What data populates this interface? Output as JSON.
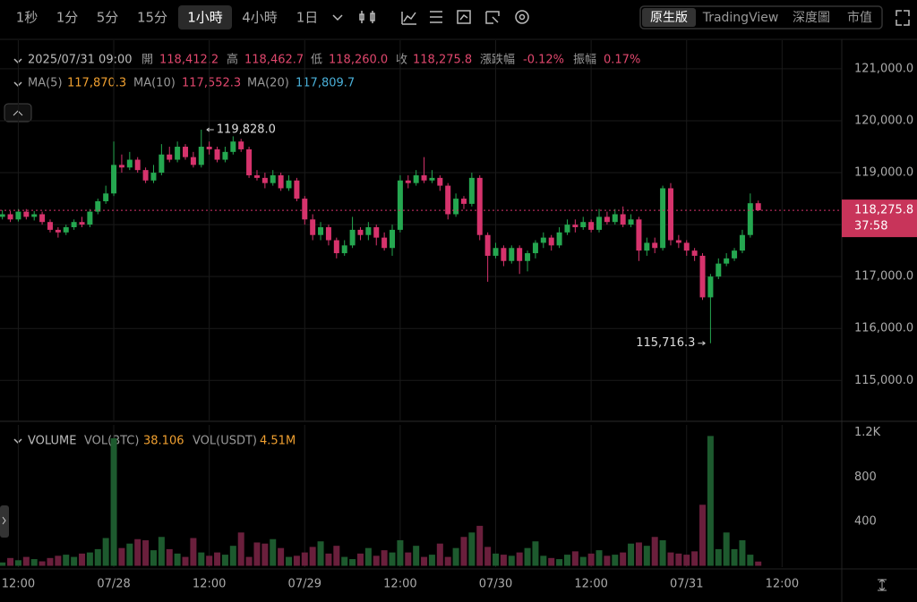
{
  "toolbar": {
    "intervals": [
      "1秒",
      "1分",
      "5分",
      "15分",
      "1小時",
      "4小時",
      "1日"
    ],
    "active_interval": 4,
    "views": [
      "原生版",
      "TradingView",
      "深度圖",
      "市值"
    ],
    "active_view": 0
  },
  "header": {
    "datetime": "2025/07/31 09:00",
    "fields": [
      {
        "label": "開",
        "value": "118,412.2"
      },
      {
        "label": "高",
        "value": "118,462.7"
      },
      {
        "label": "低",
        "value": "118,260.0"
      },
      {
        "label": "收",
        "value": "118,275.8"
      },
      {
        "label": "漲跌幅",
        "value": "-0.12%"
      },
      {
        "label": "振幅",
        "value": "0.17%"
      }
    ],
    "ma": [
      {
        "name": "MA(5)",
        "value": "117,870.3",
        "color": "#f0a030"
      },
      {
        "name": "MA(10)",
        "value": "117,552.3",
        "color": "#e0476d"
      },
      {
        "name": "MA(20)",
        "value": "117,809.7",
        "color": "#4ab0d9"
      }
    ]
  },
  "chart_data": {
    "type": "candlestick",
    "up_color": "#25a750",
    "down_color": "#d6336c",
    "vol_up_color": "#1d5a2e",
    "vol_down_color": "#6a1f3c",
    "grid": true,
    "ohlc": [
      [
        118150,
        118280,
        118100,
        118200
      ],
      [
        118200,
        118260,
        118050,
        118100
      ],
      [
        118100,
        118300,
        118060,
        118250
      ],
      [
        118250,
        118300,
        118100,
        118150
      ],
      [
        118150,
        118260,
        118080,
        118200
      ],
      [
        118200,
        118250,
        118000,
        118050
      ],
      [
        118050,
        118100,
        117850,
        117900
      ],
      [
        117900,
        117950,
        117750,
        117850
      ],
      [
        117850,
        118000,
        117800,
        117950
      ],
      [
        117950,
        118100,
        117900,
        118050
      ],
      [
        118050,
        118150,
        117950,
        118000
      ],
      [
        118000,
        118300,
        117950,
        118250
      ],
      [
        118250,
        118500,
        118200,
        118450
      ],
      [
        118450,
        118750,
        118400,
        118600
      ],
      [
        118600,
        119600,
        118550,
        119150
      ],
      [
        119150,
        119350,
        119000,
        119100
      ],
      [
        119100,
        119400,
        119050,
        119250
      ],
      [
        119250,
        119300,
        119000,
        119050
      ],
      [
        119050,
        119100,
        118800,
        118850
      ],
      [
        118850,
        119150,
        118800,
        119000
      ],
      [
        119000,
        119550,
        118950,
        119350
      ],
      [
        119350,
        119500,
        119200,
        119250
      ],
      [
        119250,
        119600,
        119200,
        119500
      ],
      [
        119500,
        119550,
        119250,
        119300
      ],
      [
        119300,
        119400,
        119100,
        119150
      ],
      [
        119150,
        119828.0,
        119100,
        119500
      ],
      [
        119500,
        119600,
        119350,
        119450
      ],
      [
        119450,
        119500,
        119200,
        119250
      ],
      [
        119250,
        119500,
        119200,
        119400
      ],
      [
        119400,
        119700,
        119350,
        119600
      ],
      [
        119600,
        119650,
        119400,
        119450
      ],
      [
        119450,
        119500,
        118900,
        118950
      ],
      [
        118950,
        119050,
        118850,
        118900
      ],
      [
        118900,
        119000,
        118700,
        118800
      ],
      [
        118800,
        119050,
        118750,
        118950
      ],
      [
        118950,
        119000,
        118650,
        118700
      ],
      [
        118700,
        118950,
        118650,
        118850
      ],
      [
        118850,
        118900,
        118450,
        118500
      ],
      [
        118500,
        118550,
        118000,
        118100
      ],
      [
        118100,
        118200,
        117700,
        117800
      ],
      [
        117800,
        118050,
        117700,
        117950
      ],
      [
        117950,
        118000,
        117600,
        117700
      ],
      [
        117700,
        117750,
        117350,
        117450
      ],
      [
        117450,
        117700,
        117400,
        117600
      ],
      [
        117600,
        118150,
        117550,
        117900
      ],
      [
        117900,
        117950,
        117700,
        117800
      ],
      [
        117800,
        118050,
        117700,
        117950
      ],
      [
        117950,
        118000,
        117600,
        117750
      ],
      [
        117750,
        117850,
        117500,
        117550
      ],
      [
        117550,
        118000,
        117400,
        117900
      ],
      [
        117900,
        118950,
        117850,
        118850
      ],
      [
        118850,
        118950,
        118700,
        118800
      ],
      [
        118800,
        119050,
        118750,
        118950
      ],
      [
        118950,
        119300,
        118800,
        118850
      ],
      [
        118850,
        119050,
        118800,
        118900
      ],
      [
        118900,
        118950,
        118650,
        118750
      ],
      [
        118750,
        118800,
        118100,
        118200
      ],
      [
        118200,
        118600,
        118150,
        118500
      ],
      [
        118500,
        118550,
        118300,
        118400
      ],
      [
        118400,
        119000,
        118350,
        118900
      ],
      [
        118900,
        118950,
        117700,
        117800
      ],
      [
        117800,
        117850,
        116900,
        117400
      ],
      [
        117400,
        117650,
        117350,
        117550
      ],
      [
        117550,
        117600,
        117200,
        117300
      ],
      [
        117300,
        117600,
        117250,
        117550
      ],
      [
        117550,
        117600,
        117050,
        117300
      ],
      [
        117300,
        117500,
        117100,
        117450
      ],
      [
        117450,
        117700,
        117350,
        117650
      ],
      [
        117650,
        117850,
        117550,
        117750
      ],
      [
        117750,
        117800,
        117500,
        117600
      ],
      [
        117600,
        117950,
        117550,
        117850
      ],
      [
        117850,
        118100,
        117800,
        118000
      ],
      [
        118000,
        118100,
        117850,
        117950
      ],
      [
        117950,
        118150,
        117900,
        118050
      ],
      [
        118050,
        118100,
        117850,
        117900
      ],
      [
        117900,
        118300,
        117850,
        118150
      ],
      [
        118150,
        118250,
        118000,
        118050
      ],
      [
        118050,
        118300,
        118000,
        118200
      ],
      [
        118200,
        118350,
        117950,
        118000
      ],
      [
        118000,
        118200,
        117950,
        118100
      ],
      [
        118100,
        118150,
        117300,
        117500
      ],
      [
        117500,
        117750,
        117400,
        117650
      ],
      [
        117650,
        117750,
        117450,
        117550
      ],
      [
        117550,
        118750,
        117500,
        118700
      ],
      [
        118700,
        118800,
        117600,
        117700
      ],
      [
        117700,
        117800,
        117550,
        117650
      ],
      [
        117650,
        117700,
        117400,
        117500
      ],
      [
        117500,
        117550,
        117300,
        117400
      ],
      [
        117400,
        117450,
        116550,
        116600
      ],
      [
        116600,
        117050,
        115716.3,
        117000
      ],
      [
        117000,
        117350,
        116950,
        117250
      ],
      [
        117250,
        117450,
        117200,
        117350
      ],
      [
        117350,
        117550,
        117300,
        117500
      ],
      [
        117500,
        117900,
        117450,
        117800
      ],
      [
        117800,
        118600,
        117750,
        118412.2
      ],
      [
        118412.2,
        118462.7,
        118260.0,
        118275.8
      ]
    ],
    "volumes": [
      30,
      70,
      50,
      80,
      60,
      40,
      70,
      90,
      100,
      80,
      110,
      120,
      150,
      250,
      1150,
      160,
      200,
      240,
      230,
      140,
      260,
      150,
      110,
      80,
      250,
      120,
      90,
      120,
      100,
      180,
      300,
      80,
      210,
      200,
      240,
      160,
      80,
      90,
      120,
      170,
      220,
      110,
      180,
      80,
      60,
      110,
      160,
      90,
      140,
      120,
      230,
      120,
      180,
      80,
      100,
      200,
      80,
      160,
      260,
      300,
      360,
      170,
      110,
      100,
      90,
      120,
      160,
      220,
      90,
      70,
      60,
      100,
      130,
      80,
      110,
      140,
      90,
      100,
      120,
      200,
      210,
      180,
      260,
      230,
      120,
      110,
      100,
      130,
      550,
      1170,
      150,
      300,
      150,
      230,
      100,
      38.106
    ],
    "xlim": [
      -0.3,
      105.5
    ],
    "xticks": [
      {
        "value": 2,
        "label": "12:00"
      },
      {
        "value": 14,
        "label": "07/28"
      },
      {
        "value": 26,
        "label": "12:00"
      },
      {
        "value": 38,
        "label": "07/29"
      },
      {
        "value": 50,
        "label": "12:00"
      },
      {
        "value": 62,
        "label": "07/30"
      },
      {
        "value": 74,
        "label": "12:00"
      },
      {
        "value": 86,
        "label": "07/31"
      },
      {
        "value": 98,
        "label": "12:00"
      }
    ],
    "ylim": [
      114230,
      121550
    ],
    "yticks": [
      {
        "value": 115000,
        "label": "115,000.0"
      },
      {
        "value": 116000,
        "label": "116,000.0"
      },
      {
        "value": 117000,
        "label": "117,000.0"
      },
      {
        "value": 118000,
        "label": "118,000.0"
      },
      {
        "value": 119000,
        "label": "119,000.0"
      },
      {
        "value": 120000,
        "label": "120,000.0"
      },
      {
        "value": 121000,
        "label": "121,000.0"
      }
    ],
    "vol_ylim": [
      0,
      1270
    ],
    "vol_yticks": [
      400,
      800,
      {
        "value": 1200,
        "label": "1.2K"
      }
    ],
    "volume_header": {
      "title": "VOLUME",
      "fields": [
        {
          "name": "VOL(BTC)",
          "value": "38.106"
        },
        {
          "name": "VOL(USDT)",
          "value": "4.51M"
        }
      ]
    },
    "last_price": {
      "value": 118275.8,
      "label": "118,275.8",
      "countdown": "37:58"
    },
    "high_label": "119,828.0",
    "low_label": "115,716.3"
  }
}
